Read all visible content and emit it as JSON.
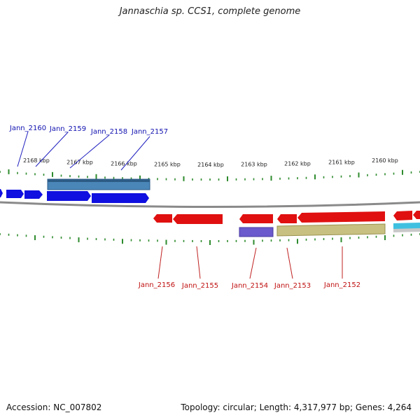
{
  "title": "Jannaschia sp. CCS1, complete genome",
  "footer": {
    "accession": "Accession: NC_007802",
    "stats": "Topology: circular; Length: 4,317,977 bp; Genes: 4,264"
  },
  "colors": {
    "forward_cds": "#1010e0",
    "reverse_cds": "#e01010",
    "backbone": "#8a8a8a",
    "tick": "#2e8b2e",
    "rna_blue": "#4a86b8",
    "rna_purple": "#6a5acd",
    "rna_olive": "#c8c080",
    "rna_cyan": "#40c0e0",
    "forward_label": "#1010b0",
    "reverse_label": "#c01010"
  },
  "kbp_labels": [
    "2168 kbp",
    "2167 kbp",
    "2166 kbp",
    "2165 kbp",
    "2164 kbp",
    "2163 kbp",
    "2162 kbp",
    "2161 kbp",
    "2160 kbp"
  ],
  "forward_genes": [
    "Jann_2160",
    "Jann_2159",
    "Jann_2158",
    "Jann_2157"
  ],
  "reverse_genes": [
    "Jann_2156",
    "Jann_2155",
    "Jann_2154",
    "Jann_2153",
    "Jann_2152"
  ]
}
